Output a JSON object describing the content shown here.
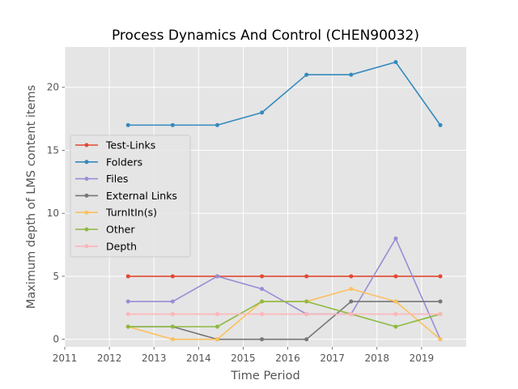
{
  "chart_data": {
    "type": "line",
    "title": "Process Dynamics And Control (CHEN90032)",
    "xlabel": "Time Period",
    "ylabel": "Maximum depth of LMS content items",
    "xlim": [
      2011,
      2020
    ],
    "ylim": [
      -0.6,
      23.2
    ],
    "xticks": [
      2011,
      2012,
      2013,
      2014,
      2015,
      2016,
      2017,
      2018,
      2019
    ],
    "yticks": [
      0,
      5,
      10,
      15,
      20
    ],
    "grid": true,
    "legend_position": "center-left",
    "x": [
      2012.42,
      2013.42,
      2014.42,
      2015.42,
      2016.42,
      2017.42,
      2018.42,
      2019.42
    ],
    "series": [
      {
        "name": "Test-Links",
        "color": "#e24a33",
        "values": [
          5,
          5,
          5,
          5,
          5,
          5,
          5,
          5
        ]
      },
      {
        "name": "Folders",
        "color": "#348abd",
        "values": [
          17,
          17,
          17,
          18,
          21,
          21,
          22,
          17
        ]
      },
      {
        "name": "Files",
        "color": "#988ed5",
        "values": [
          3,
          3,
          5,
          4,
          2,
          2,
          8,
          0
        ]
      },
      {
        "name": "External Links",
        "color": "#777777",
        "values": [
          1,
          1,
          0,
          0,
          0,
          3,
          3,
          3
        ]
      },
      {
        "name": "TurnItIn(s)",
        "color": "#fbc15e",
        "values": [
          1,
          0,
          0,
          3,
          3,
          4,
          3,
          0
        ]
      },
      {
        "name": "Other",
        "color": "#8eba42",
        "values": [
          1,
          1,
          1,
          3,
          3,
          2,
          1,
          2
        ]
      },
      {
        "name": "Depth",
        "color": "#ffb5b8",
        "values": [
          2,
          2,
          2,
          2,
          2,
          2,
          2,
          2
        ]
      }
    ]
  }
}
